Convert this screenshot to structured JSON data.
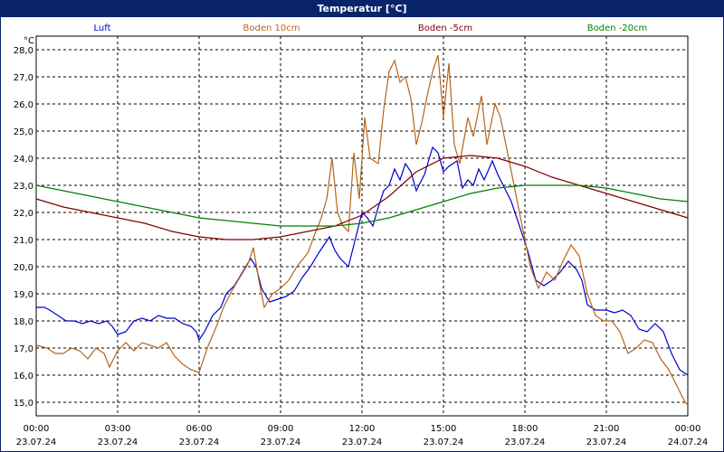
{
  "window": {
    "title": "Temperatur [°C]"
  },
  "chart_data": {
    "type": "line",
    "title": "Temperatur [°C]",
    "ylabel": "°C",
    "xlabel": "",
    "ylim": [
      14.5,
      28.5
    ],
    "xlim": [
      0,
      24
    ],
    "grid": true,
    "legend_position": "top",
    "y_ticks": [
      "15,0",
      "16,0",
      "17,0",
      "18,0",
      "19,0",
      "20,0",
      "21,0",
      "22,0",
      "23,0",
      "24,0",
      "25,0",
      "26,0",
      "27,0",
      "28,0"
    ],
    "x_ticks": [
      {
        "x": 0,
        "time": "00:00",
        "date": "23.07.24"
      },
      {
        "x": 3,
        "time": "03:00",
        "date": "23.07.24"
      },
      {
        "x": 6,
        "time": "06:00",
        "date": "23.07.24"
      },
      {
        "x": 9,
        "time": "09:00",
        "date": "23.07.24"
      },
      {
        "x": 12,
        "time": "12:00",
        "date": "23.07.24"
      },
      {
        "x": 15,
        "time": "15:00",
        "date": "23.07.24"
      },
      {
        "x": 18,
        "time": "18:00",
        "date": "23.07.24"
      },
      {
        "x": 21,
        "time": "21:00",
        "date": "23.07.24"
      },
      {
        "x": 24,
        "time": "00:00",
        "date": "24.07.24"
      }
    ],
    "series": [
      {
        "name": "Luft",
        "color": "#0000cc",
        "points": [
          [
            0,
            18.5
          ],
          [
            0.3,
            18.5
          ],
          [
            0.5,
            18.4
          ],
          [
            0.8,
            18.2
          ],
          [
            1.1,
            18.0
          ],
          [
            1.4,
            18.0
          ],
          [
            1.7,
            17.9
          ],
          [
            2.0,
            18.0
          ],
          [
            2.3,
            17.9
          ],
          [
            2.6,
            18.0
          ],
          [
            2.8,
            17.8
          ],
          [
            3.0,
            17.5
          ],
          [
            3.3,
            17.6
          ],
          [
            3.6,
            18.0
          ],
          [
            3.9,
            18.1
          ],
          [
            4.2,
            18.0
          ],
          [
            4.5,
            18.2
          ],
          [
            4.8,
            18.1
          ],
          [
            5.1,
            18.1
          ],
          [
            5.4,
            17.9
          ],
          [
            5.7,
            17.8
          ],
          [
            5.9,
            17.6
          ],
          [
            6.0,
            17.3
          ],
          [
            6.2,
            17.6
          ],
          [
            6.5,
            18.2
          ],
          [
            6.8,
            18.5
          ],
          [
            7.0,
            19.0
          ],
          [
            7.3,
            19.3
          ],
          [
            7.6,
            19.8
          ],
          [
            7.9,
            20.3
          ],
          [
            8.1,
            20.0
          ],
          [
            8.3,
            19.2
          ],
          [
            8.6,
            18.7
          ],
          [
            8.9,
            18.8
          ],
          [
            9.2,
            18.9
          ],
          [
            9.5,
            19.1
          ],
          [
            9.8,
            19.6
          ],
          [
            10.1,
            20.0
          ],
          [
            10.4,
            20.5
          ],
          [
            10.6,
            20.8
          ],
          [
            10.8,
            21.1
          ],
          [
            11.0,
            20.6
          ],
          [
            11.2,
            20.3
          ],
          [
            11.5,
            20.0
          ],
          [
            11.8,
            21.2
          ],
          [
            12.0,
            22.0
          ],
          [
            12.2,
            21.8
          ],
          [
            12.4,
            21.5
          ],
          [
            12.6,
            22.2
          ],
          [
            12.8,
            22.8
          ],
          [
            13.0,
            23.0
          ],
          [
            13.2,
            23.6
          ],
          [
            13.4,
            23.2
          ],
          [
            13.6,
            23.8
          ],
          [
            13.8,
            23.5
          ],
          [
            14.0,
            22.8
          ],
          [
            14.3,
            23.4
          ],
          [
            14.6,
            24.4
          ],
          [
            14.8,
            24.2
          ],
          [
            15.0,
            23.5
          ],
          [
            15.2,
            23.7
          ],
          [
            15.5,
            23.9
          ],
          [
            15.7,
            22.9
          ],
          [
            15.9,
            23.2
          ],
          [
            16.1,
            23.0
          ],
          [
            16.3,
            23.6
          ],
          [
            16.5,
            23.2
          ],
          [
            16.8,
            23.9
          ],
          [
            17.0,
            23.4
          ],
          [
            17.2,
            23.0
          ],
          [
            17.5,
            22.4
          ],
          [
            17.8,
            21.5
          ],
          [
            18.1,
            20.6
          ],
          [
            18.4,
            19.5
          ],
          [
            18.7,
            19.3
          ],
          [
            19.0,
            19.5
          ],
          [
            19.3,
            19.8
          ],
          [
            19.6,
            20.2
          ],
          [
            19.9,
            19.9
          ],
          [
            20.1,
            19.5
          ],
          [
            20.3,
            18.6
          ],
          [
            20.6,
            18.4
          ],
          [
            21.0,
            18.4
          ],
          [
            21.3,
            18.3
          ],
          [
            21.6,
            18.4
          ],
          [
            21.9,
            18.2
          ],
          [
            22.2,
            17.7
          ],
          [
            22.5,
            17.6
          ],
          [
            22.8,
            17.9
          ],
          [
            23.1,
            17.6
          ],
          [
            23.4,
            16.8
          ],
          [
            23.7,
            16.2
          ],
          [
            24.0,
            16.0
          ]
        ]
      },
      {
        "name": "Boden 10cm",
        "color": "#b5651d",
        "points": [
          [
            0,
            17.1
          ],
          [
            0.4,
            17.0
          ],
          [
            0.7,
            16.8
          ],
          [
            1.0,
            16.8
          ],
          [
            1.3,
            17.0
          ],
          [
            1.6,
            16.9
          ],
          [
            1.9,
            16.6
          ],
          [
            2.2,
            17.0
          ],
          [
            2.5,
            16.8
          ],
          [
            2.7,
            16.3
          ],
          [
            3.0,
            16.9
          ],
          [
            3.3,
            17.2
          ],
          [
            3.6,
            16.9
          ],
          [
            3.9,
            17.2
          ],
          [
            4.2,
            17.1
          ],
          [
            4.5,
            17.0
          ],
          [
            4.8,
            17.2
          ],
          [
            5.1,
            16.7
          ],
          [
            5.4,
            16.4
          ],
          [
            5.7,
            16.2
          ],
          [
            6.0,
            16.1
          ],
          [
            6.3,
            17.0
          ],
          [
            6.6,
            17.7
          ],
          [
            6.9,
            18.5
          ],
          [
            7.2,
            19.1
          ],
          [
            7.5,
            19.6
          ],
          [
            7.8,
            20.1
          ],
          [
            8.0,
            20.7
          ],
          [
            8.2,
            19.5
          ],
          [
            8.4,
            18.5
          ],
          [
            8.7,
            19.0
          ],
          [
            9.0,
            19.2
          ],
          [
            9.3,
            19.5
          ],
          [
            9.6,
            20.0
          ],
          [
            10.0,
            20.5
          ],
          [
            10.3,
            21.3
          ],
          [
            10.5,
            21.8
          ],
          [
            10.7,
            22.5
          ],
          [
            10.9,
            24.0
          ],
          [
            11.1,
            22.0
          ],
          [
            11.3,
            21.5
          ],
          [
            11.5,
            21.3
          ],
          [
            11.7,
            24.2
          ],
          [
            11.9,
            22.5
          ],
          [
            12.1,
            25.5
          ],
          [
            12.3,
            24.0
          ],
          [
            12.6,
            23.8
          ],
          [
            12.8,
            25.8
          ],
          [
            13.0,
            27.2
          ],
          [
            13.2,
            27.6
          ],
          [
            13.4,
            26.8
          ],
          [
            13.6,
            27.0
          ],
          [
            13.8,
            26.2
          ],
          [
            14.0,
            24.5
          ],
          [
            14.2,
            25.3
          ],
          [
            14.4,
            26.3
          ],
          [
            14.6,
            27.2
          ],
          [
            14.8,
            27.8
          ],
          [
            15.0,
            25.5
          ],
          [
            15.2,
            27.5
          ],
          [
            15.4,
            24.5
          ],
          [
            15.6,
            23.8
          ],
          [
            15.9,
            25.5
          ],
          [
            16.1,
            24.8
          ],
          [
            16.4,
            26.3
          ],
          [
            16.6,
            24.5
          ],
          [
            16.9,
            26.0
          ],
          [
            17.1,
            25.5
          ],
          [
            17.3,
            24.5
          ],
          [
            17.6,
            23.0
          ],
          [
            17.9,
            21.5
          ],
          [
            18.2,
            20.0
          ],
          [
            18.5,
            19.2
          ],
          [
            18.8,
            19.8
          ],
          [
            19.1,
            19.5
          ],
          [
            19.4,
            20.2
          ],
          [
            19.7,
            20.8
          ],
          [
            20.0,
            20.4
          ],
          [
            20.3,
            19.0
          ],
          [
            20.6,
            18.2
          ],
          [
            20.9,
            18.0
          ],
          [
            21.2,
            18.0
          ],
          [
            21.5,
            17.6
          ],
          [
            21.8,
            16.8
          ],
          [
            22.1,
            17.0
          ],
          [
            22.4,
            17.3
          ],
          [
            22.7,
            17.2
          ],
          [
            23.0,
            16.6
          ],
          [
            23.3,
            16.2
          ],
          [
            23.6,
            15.6
          ],
          [
            23.9,
            15.0
          ],
          [
            24.0,
            14.9
          ]
        ]
      },
      {
        "name": "Boden -5cm",
        "color": "#800000",
        "points": [
          [
            0,
            22.5
          ],
          [
            1,
            22.2
          ],
          [
            2,
            22.0
          ],
          [
            3,
            21.8
          ],
          [
            4,
            21.6
          ],
          [
            5,
            21.3
          ],
          [
            6,
            21.1
          ],
          [
            7,
            21.0
          ],
          [
            8,
            21.0
          ],
          [
            9,
            21.1
          ],
          [
            10,
            21.3
          ],
          [
            11,
            21.5
          ],
          [
            12,
            21.9
          ],
          [
            13,
            22.6
          ],
          [
            14,
            23.5
          ],
          [
            15,
            24.0
          ],
          [
            16,
            24.1
          ],
          [
            17,
            24.0
          ],
          [
            18,
            23.7
          ],
          [
            19,
            23.3
          ],
          [
            20,
            23.0
          ],
          [
            21,
            22.7
          ],
          [
            22,
            22.4
          ],
          [
            23,
            22.1
          ],
          [
            24,
            21.8
          ]
        ]
      },
      {
        "name": "Boden -20cm",
        "color": "#008000",
        "points": [
          [
            0,
            23.0
          ],
          [
            1,
            22.8
          ],
          [
            2,
            22.6
          ],
          [
            3,
            22.4
          ],
          [
            4,
            22.2
          ],
          [
            5,
            22.0
          ],
          [
            6,
            21.8
          ],
          [
            7,
            21.7
          ],
          [
            8,
            21.6
          ],
          [
            9,
            21.5
          ],
          [
            10,
            21.5
          ],
          [
            11,
            21.5
          ],
          [
            12,
            21.6
          ],
          [
            13,
            21.8
          ],
          [
            14,
            22.1
          ],
          [
            15,
            22.4
          ],
          [
            16,
            22.7
          ],
          [
            17,
            22.9
          ],
          [
            18,
            23.0
          ],
          [
            19,
            23.0
          ],
          [
            20,
            23.0
          ],
          [
            21,
            22.9
          ],
          [
            22,
            22.7
          ],
          [
            23,
            22.5
          ],
          [
            24,
            22.4
          ]
        ]
      }
    ]
  }
}
